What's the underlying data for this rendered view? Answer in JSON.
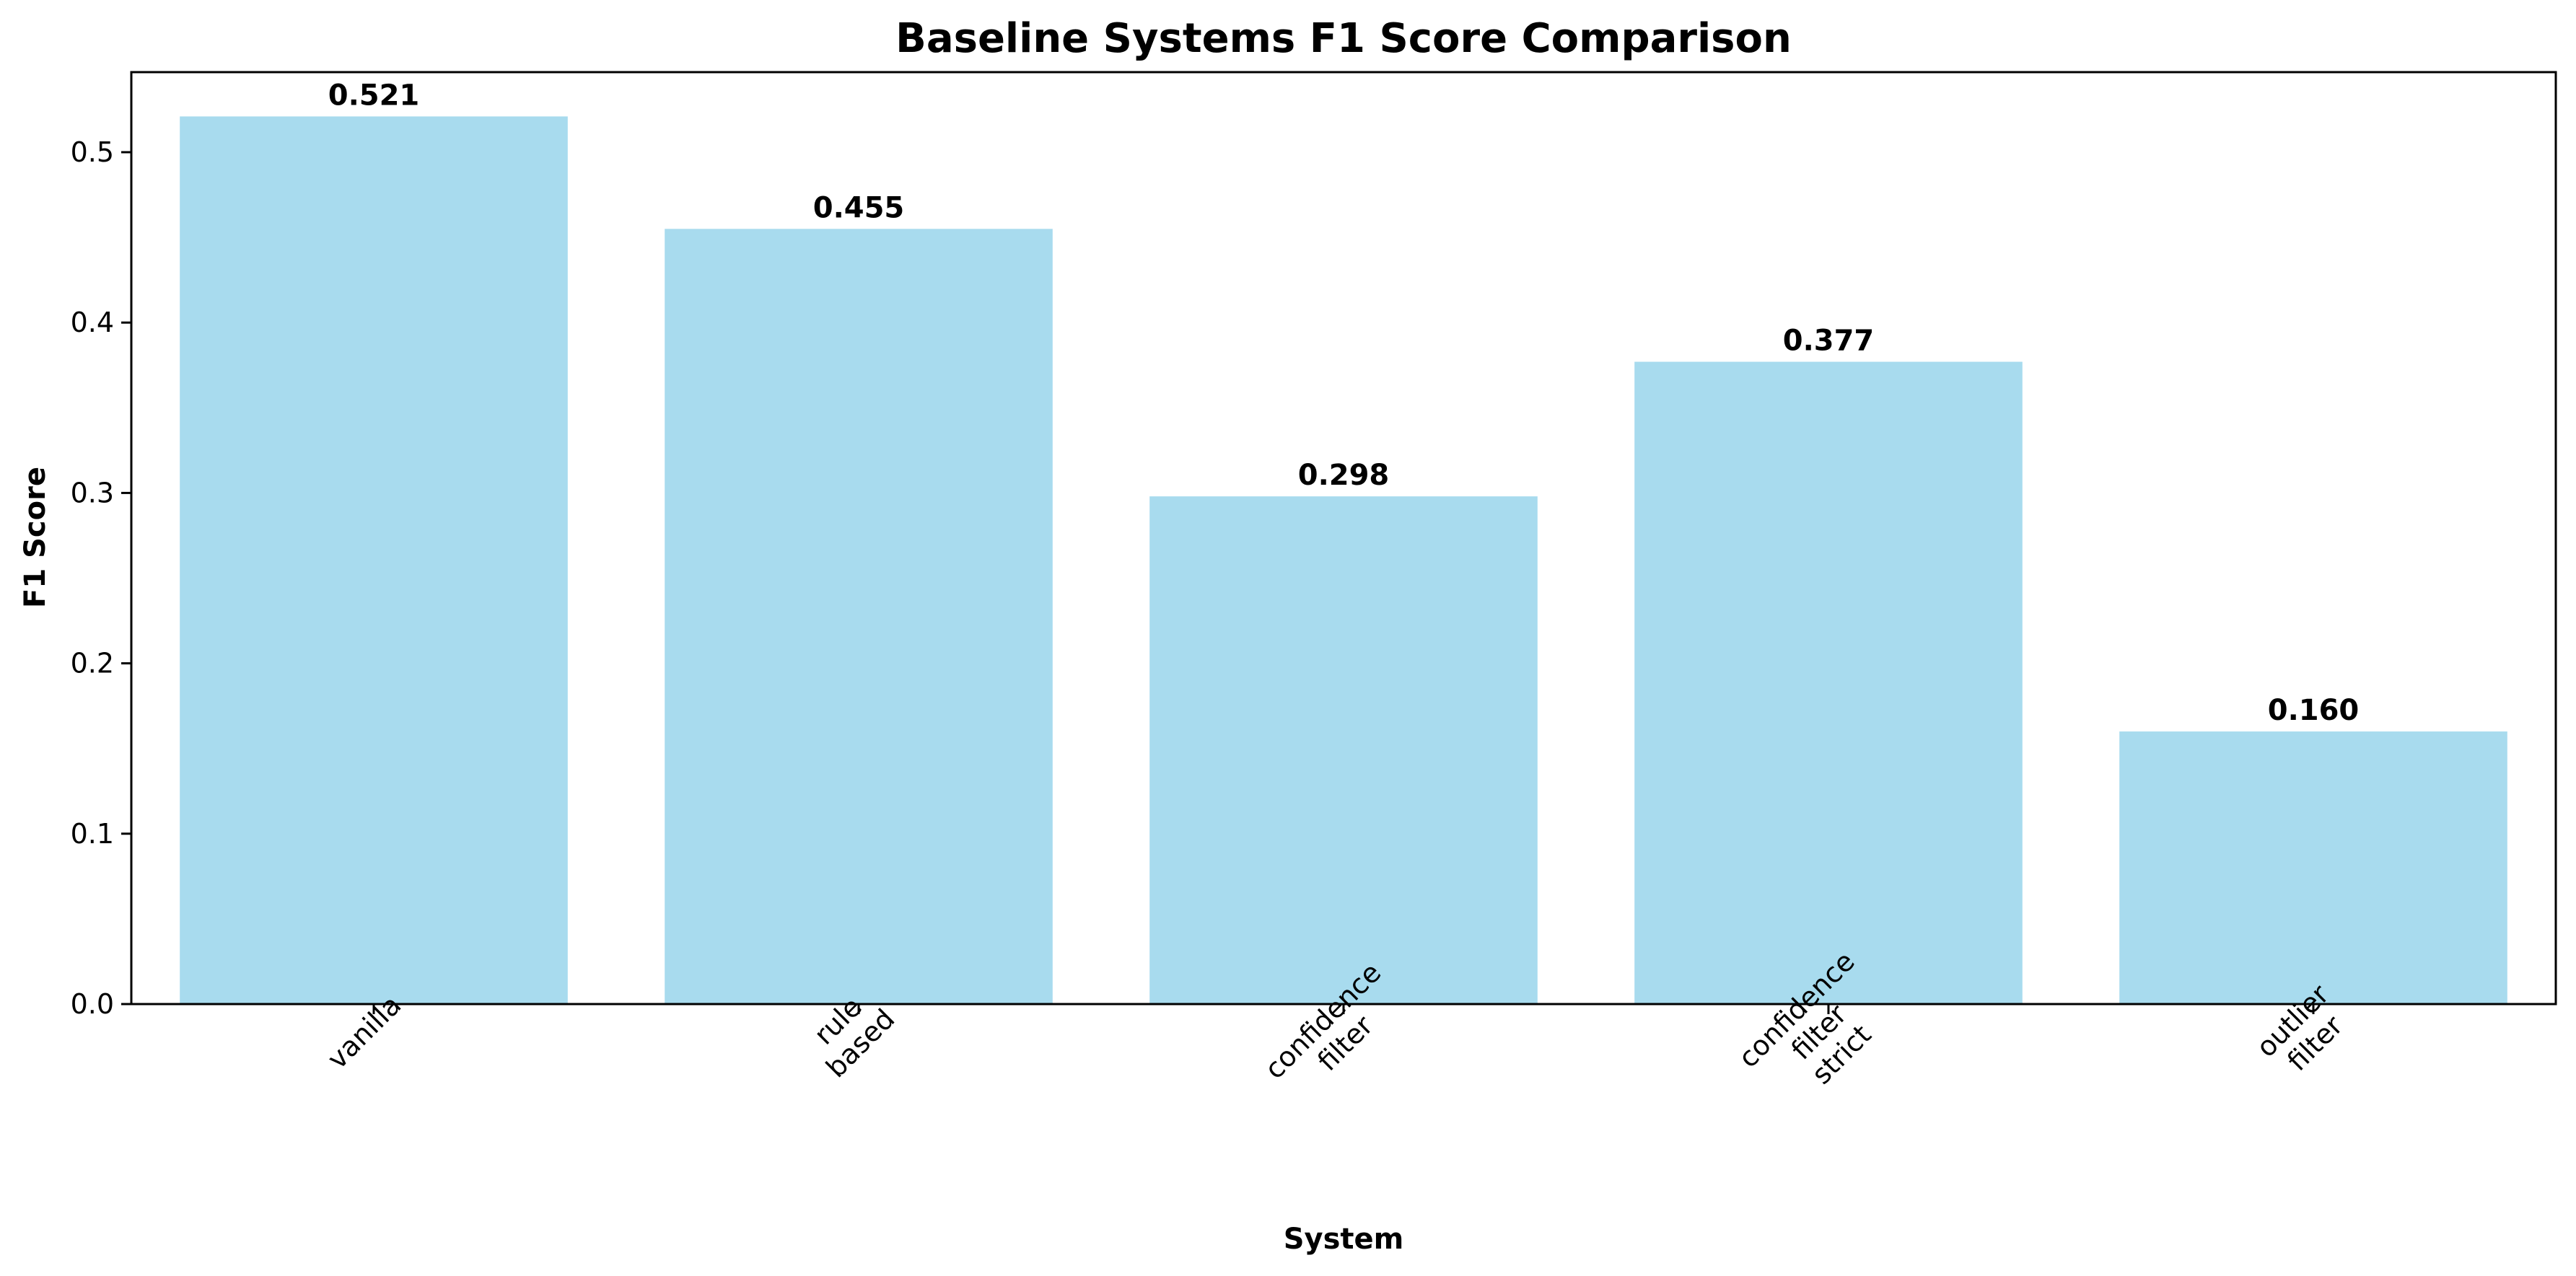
{
  "chart_data": {
    "type": "bar",
    "title": "Baseline Systems F1 Score Comparison",
    "xlabel": "System",
    "ylabel": "F1 Score",
    "categories": [
      [
        "vanilla"
      ],
      [
        "rule",
        "based"
      ],
      [
        "confidence",
        "filter"
      ],
      [
        "confidence",
        "filter",
        "strict"
      ],
      [
        "outlier",
        "filter"
      ]
    ],
    "values": [
      0.521,
      0.455,
      0.298,
      0.377,
      0.16
    ],
    "value_labels": [
      "0.521",
      "0.455",
      "0.298",
      "0.377",
      "0.160"
    ],
    "ylim": [
      0,
      0.547
    ],
    "yticks": [
      0.0,
      0.1,
      0.2,
      0.3,
      0.4,
      0.5
    ],
    "ytick_labels": [
      "0.0",
      "0.1",
      "0.2",
      "0.3",
      "0.4",
      "0.5"
    ],
    "grid": false,
    "bar_color": "#a8dbee"
  }
}
